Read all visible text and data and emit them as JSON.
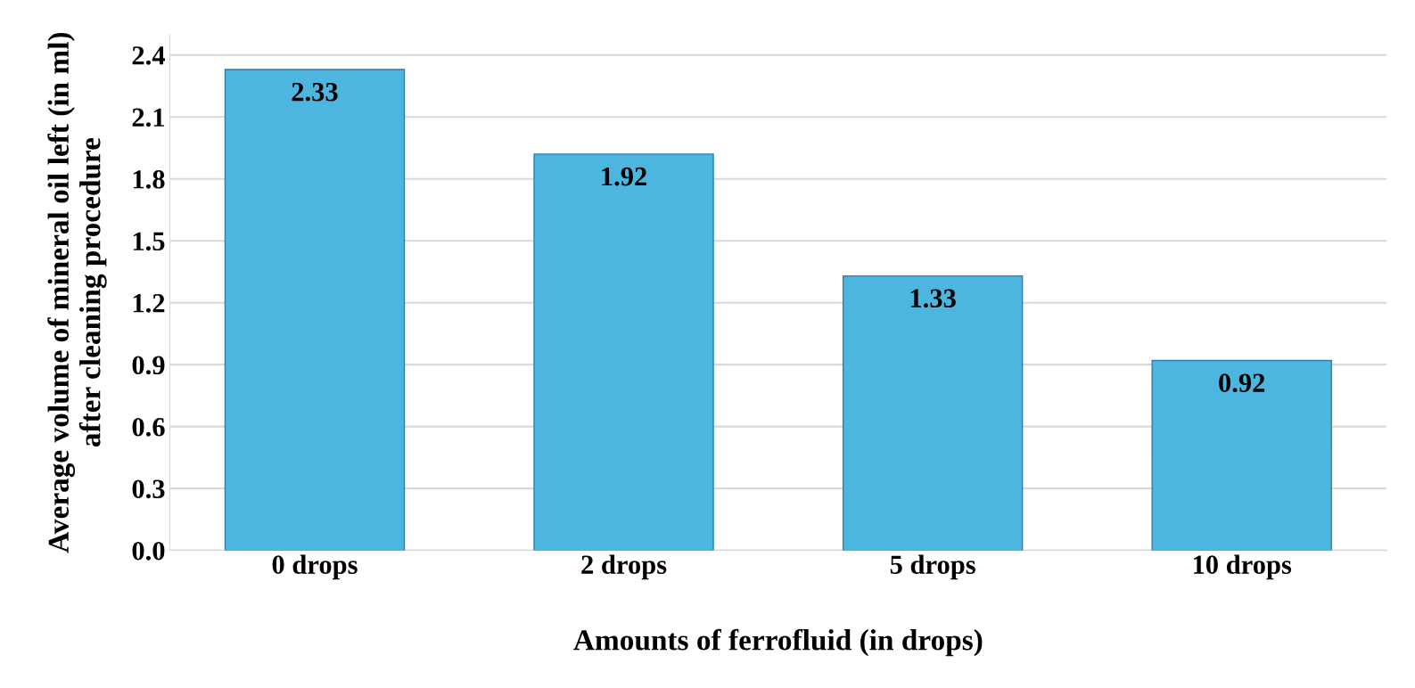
{
  "chart_data": {
    "type": "bar",
    "xlabel": "Amounts of ferrofluid (in drops)",
    "ylabel": "Average volume of mineral oil left (in ml)\nafter cleaning procedure",
    "categories": [
      "0 drops",
      "2 drops",
      "5 drops",
      "10 drops"
    ],
    "values": [
      2.33,
      1.92,
      1.33,
      0.92
    ],
    "color": "#4db6df",
    "ylim": [
      0,
      2.5
    ],
    "yticks": [
      {
        "value": 0,
        "label": "0.0"
      },
      0.3,
      0.6,
      0.9,
      1.2,
      1.5,
      1.8,
      2.1,
      2.4
    ],
    "grid": "y",
    "data_labels": true
  }
}
